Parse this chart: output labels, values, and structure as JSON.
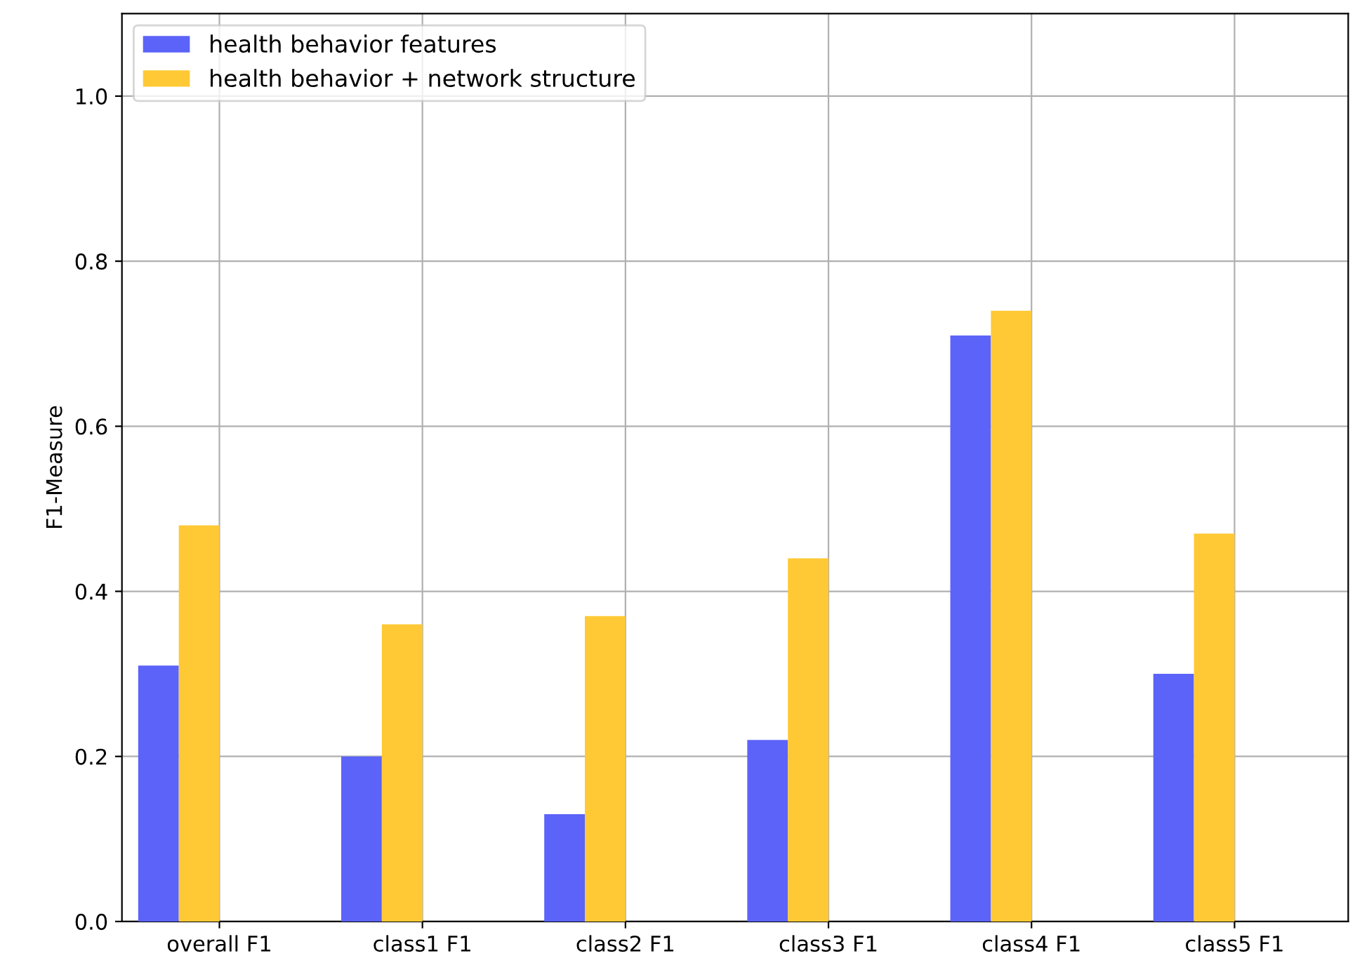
{
  "chart_data": {
    "type": "bar",
    "ylabel": "F1-Measure",
    "categories": [
      "overall F1",
      "class1 F1",
      "class2 F1",
      "class3 F1",
      "class4 F1",
      "class5 F1"
    ],
    "series": [
      {
        "name": "health behavior features",
        "color": "#5b63f9",
        "values": [
          0.31,
          0.2,
          0.13,
          0.22,
          0.71,
          0.3
        ]
      },
      {
        "name": "health behavior + network structure",
        "color": "#ffc935",
        "values": [
          0.48,
          0.36,
          0.37,
          0.44,
          0.74,
          0.47
        ]
      }
    ],
    "ylim": [
      0,
      1.1
    ],
    "yticks": [
      {
        "value": 0,
        "label": "0.0"
      },
      0.2,
      0.4,
      0.6,
      0.8,
      {
        "value": 1,
        "label": "1.0"
      }
    ],
    "grid": true,
    "legend": "top left"
  }
}
